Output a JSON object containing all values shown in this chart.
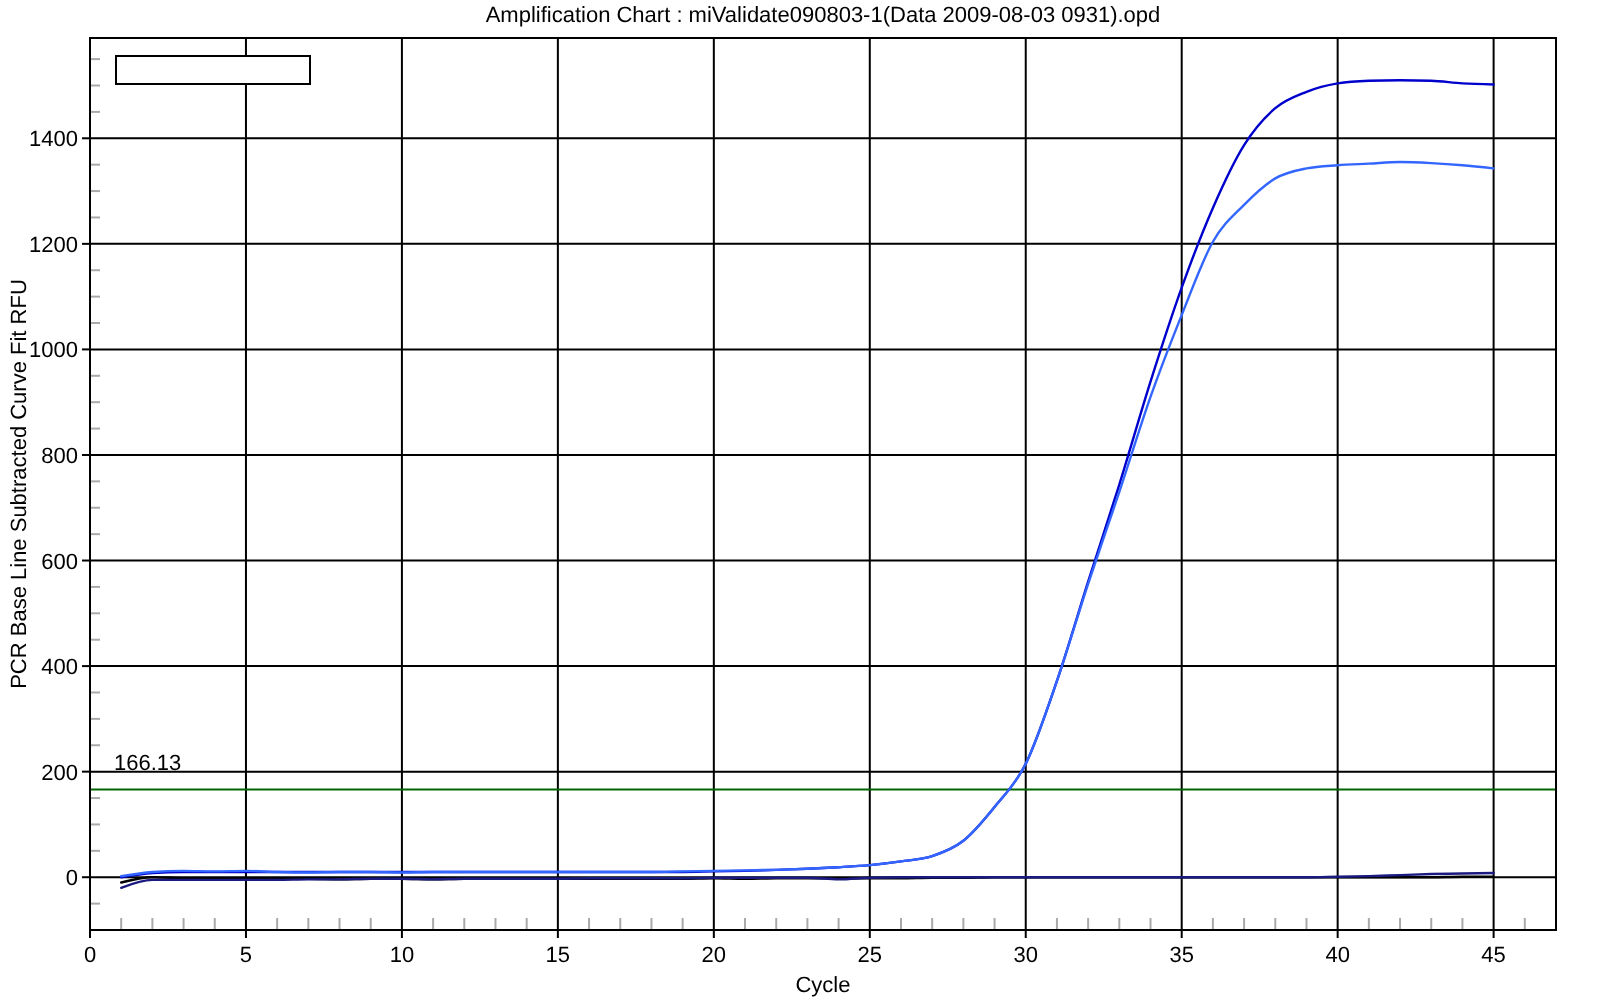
{
  "chart_data": {
    "type": "line",
    "title": "Amplification Chart : miValidate090803-1(Data 2009-08-03 0931).opd",
    "xlabel": "Cycle",
    "ylabel": "PCR Base Line Subtracted Curve Fit RFU",
    "x": [
      1,
      2,
      3,
      4,
      5,
      6,
      7,
      8,
      9,
      10,
      11,
      12,
      13,
      14,
      15,
      16,
      17,
      18,
      19,
      20,
      21,
      22,
      23,
      24,
      25,
      26,
      27,
      28,
      29,
      30,
      31,
      32,
      33,
      34,
      35,
      36,
      37,
      38,
      39,
      40,
      41,
      42,
      43,
      44,
      45
    ],
    "series": [
      {
        "color": "#0000cc",
        "values": [
          0,
          8,
          10,
          10,
          10,
          10,
          10,
          10,
          10,
          10,
          10,
          10,
          10,
          10,
          10,
          10,
          10,
          10,
          10,
          11,
          12,
          14,
          16,
          19,
          23,
          30,
          40,
          69,
          133,
          215,
          372,
          560,
          744,
          939,
          1117,
          1268,
          1387,
          1457,
          1488,
          1504,
          1509,
          1510,
          1509,
          1504,
          1502
        ]
      },
      {
        "color": "#3366ff",
        "values": [
          2,
          10,
          12,
          11,
          12,
          10,
          9,
          10,
          10,
          9,
          10,
          10,
          10,
          10,
          10,
          10,
          10,
          10,
          11,
          12,
          13,
          14,
          16,
          19,
          23,
          30,
          40,
          69,
          133,
          215,
          372,
          556,
          730,
          910,
          1065,
          1204,
          1274,
          1324,
          1343,
          1349,
          1352,
          1355,
          1353,
          1349,
          1343
        ]
      },
      {
        "color": "#000000",
        "values": [
          -10,
          0,
          -2,
          -3,
          -2,
          -3,
          -3,
          -4,
          -3,
          -3,
          -4,
          -3,
          -3,
          -3,
          -3,
          -3,
          -3,
          -3,
          -3,
          -2,
          -3,
          -2,
          -2,
          -2,
          -2,
          -2,
          -1,
          -1,
          0,
          0,
          0,
          0,
          0,
          0,
          0,
          0,
          0,
          0,
          0,
          0,
          0,
          0,
          0,
          1,
          1
        ]
      },
      {
        "color": "#1a1a80",
        "values": [
          -20,
          -5,
          -5,
          -5,
          -5,
          -5,
          -4,
          -4,
          -3,
          -3,
          -4,
          -3,
          -3,
          -3,
          -3,
          -2,
          -2,
          -2,
          -2,
          -1,
          -1,
          -1,
          -1,
          -4,
          -1,
          0,
          0,
          0,
          0,
          0,
          0,
          0,
          0,
          0,
          0,
          0,
          0,
          0,
          0,
          1,
          2,
          4,
          6,
          7,
          8
        ]
      }
    ],
    "xlim": [
      0,
      47
    ],
    "ylim": [
      -100,
      1590
    ],
    "xticks": [
      0,
      {
        "value": 1,
        "label": null
      },
      {
        "value": 2,
        "label": null
      },
      {
        "value": 3,
        "label": null
      },
      {
        "value": 4,
        "label": null
      },
      5,
      {
        "value": 6,
        "label": null
      },
      {
        "value": 7,
        "label": null
      },
      {
        "value": 8,
        "label": null
      },
      {
        "value": 9,
        "label": null
      },
      10,
      {
        "value": 11,
        "label": null
      },
      {
        "value": 12,
        "label": null
      },
      {
        "value": 13,
        "label": null
      },
      {
        "value": 14,
        "label": null
      },
      15,
      {
        "value": 16,
        "label": null
      },
      {
        "value": 17,
        "label": null
      },
      {
        "value": 18,
        "label": null
      },
      {
        "value": 19,
        "label": null
      },
      20,
      {
        "value": 21,
        "label": null
      },
      {
        "value": 22,
        "label": null
      },
      {
        "value": 23,
        "label": null
      },
      {
        "value": 24,
        "label": null
      },
      25,
      {
        "value": 26,
        "label": null
      },
      {
        "value": 27,
        "label": null
      },
      {
        "value": 28,
        "label": null
      },
      {
        "value": 29,
        "label": null
      },
      30,
      {
        "value": 31,
        "label": null
      },
      {
        "value": 32,
        "label": null
      },
      {
        "value": 33,
        "label": null
      },
      {
        "value": 34,
        "label": null
      },
      35,
      {
        "value": 36,
        "label": null
      },
      {
        "value": 37,
        "label": null
      },
      {
        "value": 38,
        "label": null
      },
      {
        "value": 39,
        "label": null
      },
      40,
      {
        "value": 41,
        "label": null
      },
      {
        "value": 42,
        "label": null
      },
      {
        "value": 43,
        "label": null
      },
      {
        "value": 44,
        "label": null
      },
      45,
      {
        "value": 46,
        "label": null
      }
    ],
    "yticks": [
      {
        "value": -50,
        "label": null
      },
      0,
      {
        "value": 50,
        "label": null
      },
      {
        "value": 100,
        "label": null
      },
      {
        "value": 150,
        "label": null
      },
      200,
      {
        "value": 250,
        "label": null
      },
      {
        "value": 300,
        "label": null
      },
      {
        "value": 350,
        "label": null
      },
      400,
      {
        "value": 450,
        "label": null
      },
      {
        "value": 500,
        "label": null
      },
      {
        "value": 550,
        "label": null
      },
      600,
      {
        "value": 650,
        "label": null
      },
      {
        "value": 700,
        "label": null
      },
      {
        "value": 750,
        "label": null
      },
      800,
      {
        "value": 850,
        "label": null
      },
      {
        "value": 900,
        "label": null
      },
      {
        "value": 950,
        "label": null
      },
      1000,
      {
        "value": 1050,
        "label": null
      },
      {
        "value": 1100,
        "label": null
      },
      {
        "value": 1150,
        "label": null
      },
      1200,
      {
        "value": 1250,
        "label": null
      },
      {
        "value": 1300,
        "label": null
      },
      {
        "value": 1350,
        "label": null
      },
      1400,
      {
        "value": 1450,
        "label": null
      },
      {
        "value": 1500,
        "label": null
      },
      {
        "value": 1550,
        "label": null
      }
    ],
    "ref_lines": [
      {
        "axis": "y",
        "value": 166.13,
        "label": "166.13",
        "color": "#006600"
      }
    ],
    "grid": true,
    "marker": "none",
    "line_style": "solid",
    "legend": false
  }
}
